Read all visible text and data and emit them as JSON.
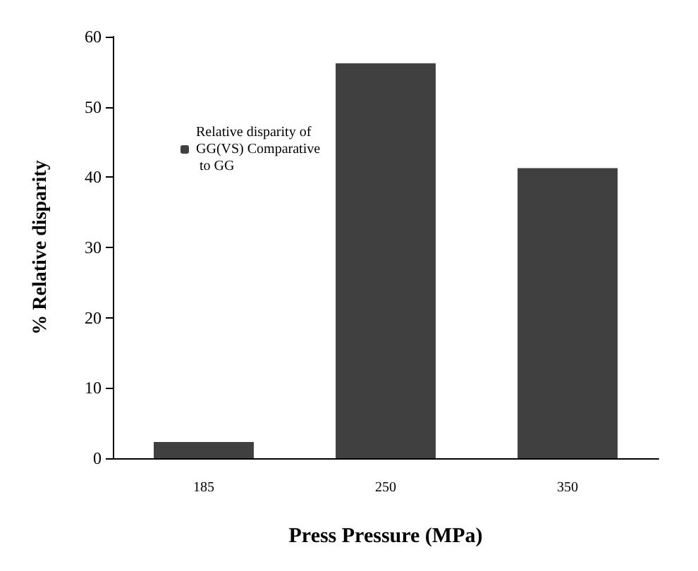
{
  "chart_data": {
    "type": "bar",
    "xlabel": "Press Pressure (MPa)",
    "ylabel": "% Relative disparity",
    "categories": [
      "185",
      "250",
      "350"
    ],
    "series": [
      {
        "name": "Relative disparity of GG(VS) Comparative to GG",
        "color": "#404040",
        "values": [
          2.3,
          56.2,
          41.3
        ]
      }
    ],
    "ylim": [
      0,
      60
    ],
    "yticks": [
      0,
      10,
      20,
      30,
      40,
      50,
      60
    ],
    "grid": false,
    "legend": "top left"
  }
}
